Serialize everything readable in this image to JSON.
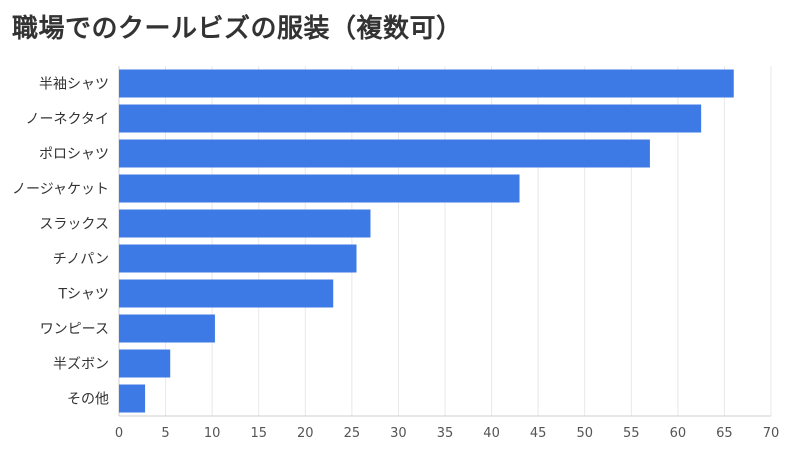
{
  "chart_data": {
    "type": "bar",
    "orientation": "horizontal",
    "title": "職場でのクールビズの服装（複数可）",
    "categories": [
      "半袖シャツ",
      "ノーネクタイ",
      "ポロシャツ",
      "ノージャケット",
      "スラックス",
      "チノパン",
      "Tシャツ",
      "ワンピース",
      "半ズボン",
      "その他"
    ],
    "values": [
      66,
      62.5,
      57,
      43,
      27,
      25.5,
      23,
      10.3,
      5.5,
      2.8
    ],
    "xlim": [
      0,
      70
    ],
    "xticks": [
      0,
      5,
      10,
      15,
      20,
      25,
      30,
      35,
      40,
      45,
      50,
      55,
      60,
      65,
      70
    ],
    "grid": true,
    "bar_color": "#3d7ae6"
  }
}
